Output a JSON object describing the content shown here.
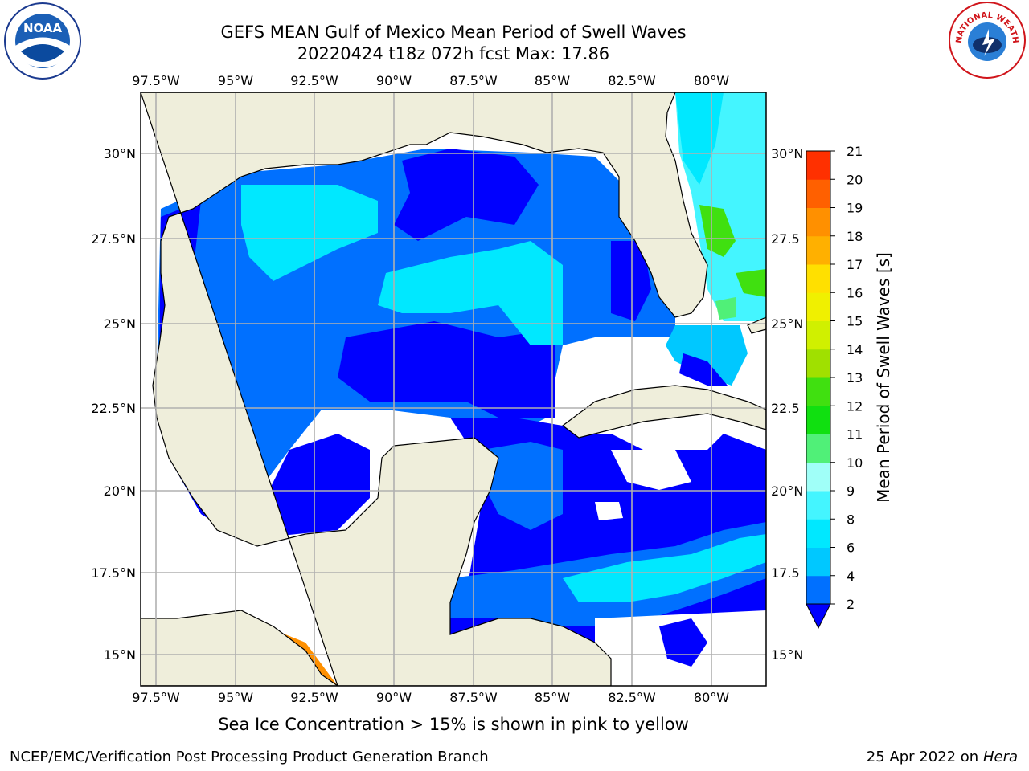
{
  "header": {
    "title": "GEFS MEAN Gulf of Mexico Mean Period of Swell Waves",
    "subtitle": "20220424 t18z 072h fcst   Max: 17.86"
  },
  "map": {
    "lon_ticks": [
      "97.5°W",
      "95°W",
      "92.5°W",
      "90°W",
      "87.5°W",
      "85°W",
      "82.5°W",
      "80°W"
    ],
    "lat_ticks": [
      "30°N",
      "27.5°N",
      "25°N",
      "22.5°N",
      "20°N",
      "17.5°N",
      "15°N"
    ],
    "lat_ticks_right": [
      "30°N",
      "27.5",
      "25°N",
      "22.5",
      "20°N",
      "17.5",
      "15°N"
    ],
    "land_color": "#efeedb",
    "ocean_nodata_color": "#ffffff"
  },
  "colorbar": {
    "label": "Mean Period of Swell Waves [s]",
    "ticks": [
      "2",
      "4",
      "6",
      "8",
      "9",
      "10",
      "11",
      "12",
      "13",
      "14",
      "15",
      "16",
      "17",
      "18",
      "19",
      "20",
      "21"
    ],
    "colors": [
      "#0070ff",
      "#00c8ff",
      "#00e8ff",
      "#44f5ff",
      "#a0fff8",
      "#50f078",
      "#10e010",
      "#40e010",
      "#a0e000",
      "#d0f000",
      "#f0f000",
      "#ffe000",
      "#ffb000",
      "#ff9000",
      "#ff6000",
      "#ff3000",
      "#ff0000"
    ],
    "under_color": "#0000ff"
  },
  "logos": {
    "noaa": {
      "text": "NOAA"
    },
    "nws": {
      "text": "NATIONAL WEATHER SERVICE"
    }
  },
  "notes": {
    "ice": "Sea Ice Concentration > 15% is shown in pink to yellow"
  },
  "footer": {
    "left": "NCEP/EMC/Verification Post Processing Product Generation Branch",
    "right_date": "25 Apr 2022 on ",
    "right_host": "Hera"
  }
}
